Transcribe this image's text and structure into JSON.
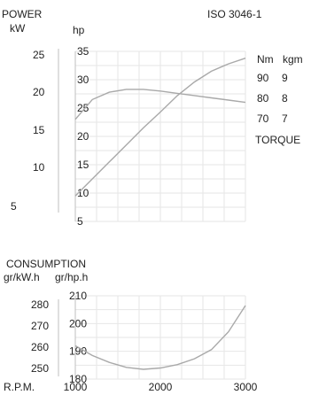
{
  "iso_label": "ISO 3046-1",
  "chart_data": [
    {
      "type": "line",
      "title": "POWER",
      "xlabel": "R.P.M.",
      "x_ticks": [
        1000,
        2000,
        3000
      ],
      "x": [
        1000,
        1200,
        1400,
        1600,
        1800,
        2000,
        2200,
        2400,
        2600,
        2800,
        3000
      ],
      "axes": {
        "power_kw": {
          "label": "kW",
          "ticks": [
            5,
            10,
            15,
            20,
            25
          ]
        },
        "power_hp": {
          "label": "hp",
          "ticks": [
            5,
            10,
            15,
            20,
            25,
            30,
            35
          ],
          "ylim": [
            5,
            35
          ]
        },
        "torque_nm": {
          "label": "Nm",
          "ticks": [
            70,
            80,
            90
          ]
        },
        "torque_kgm": {
          "label": "kgm",
          "ticks": [
            7,
            8,
            9
          ]
        },
        "torque_title": "TORQUE"
      },
      "series": [
        {
          "values": [
            9.5,
            12.5,
            15.5,
            18.5,
            21.5,
            24.3,
            27.2,
            29.6,
            31.5,
            32.8,
            33.8
          ]
        },
        {
          "values": [
            23,
            26.5,
            27.8,
            28.3,
            28.3,
            28,
            27.6,
            27.2,
            26.8,
            26.4,
            26
          ]
        }
      ]
    },
    {
      "type": "line",
      "title": "CONSUMPTION",
      "xlabel": "R.P.M.",
      "x_ticks": [
        1000,
        2000,
        3000
      ],
      "x": [
        1000,
        1200,
        1400,
        1600,
        1800,
        2000,
        2200,
        2400,
        2600,
        2800,
        3000
      ],
      "axes": {
        "gr_kwh": {
          "label": "gr/kW.h",
          "ticks": [
            250,
            260,
            270,
            280
          ]
        },
        "gr_hph": {
          "label": "gr/hp.h",
          "ticks": [
            180,
            190,
            200,
            210
          ],
          "ylim": [
            180,
            210
          ]
        }
      },
      "series": [
        {
          "values": [
            192,
            188.5,
            186,
            184.2,
            183.5,
            184,
            185.2,
            187.3,
            190.6,
            197,
            206.5
          ]
        }
      ]
    }
  ]
}
